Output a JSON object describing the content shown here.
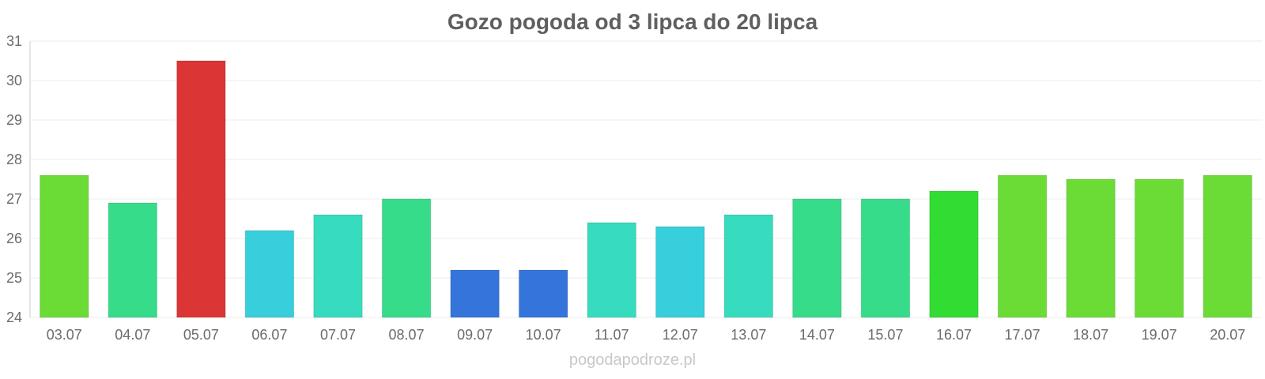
{
  "chart_data": {
    "type": "bar",
    "title": "Gozo pogoda od 3 lipca do 20 lipca",
    "xlabel": "",
    "ylabel": "",
    "ylim": [
      24,
      31
    ],
    "yticks": [
      "24",
      "25",
      "26",
      "27",
      "28",
      "29",
      "30",
      "31"
    ],
    "grid": true,
    "categories": [
      "03.07",
      "04.07",
      "05.07",
      "06.07",
      "07.07",
      "08.07",
      "09.07",
      "10.07",
      "11.07",
      "12.07",
      "13.07",
      "14.07",
      "15.07",
      "16.07",
      "17.07",
      "18.07",
      "19.07",
      "20.07"
    ],
    "values": [
      27.6,
      26.9,
      30.5,
      26.2,
      26.6,
      27.0,
      25.2,
      25.2,
      26.4,
      26.3,
      26.6,
      27.0,
      27.0,
      27.2,
      27.6,
      27.5,
      27.5,
      27.6
    ],
    "colors": [
      "#6bdc36",
      "#37dc8b",
      "#db3535",
      "#36cfdb",
      "#36dcbd",
      "#37dc8b",
      "#3575db",
      "#3575db",
      "#36dcbd",
      "#36cfdb",
      "#36dcbd",
      "#37dc8b",
      "#37dc8b",
      "#33dc33",
      "#6bdc36",
      "#6bdc36",
      "#6bdc36",
      "#6bdc36"
    ]
  },
  "watermark": "pogodapodroze.pl"
}
